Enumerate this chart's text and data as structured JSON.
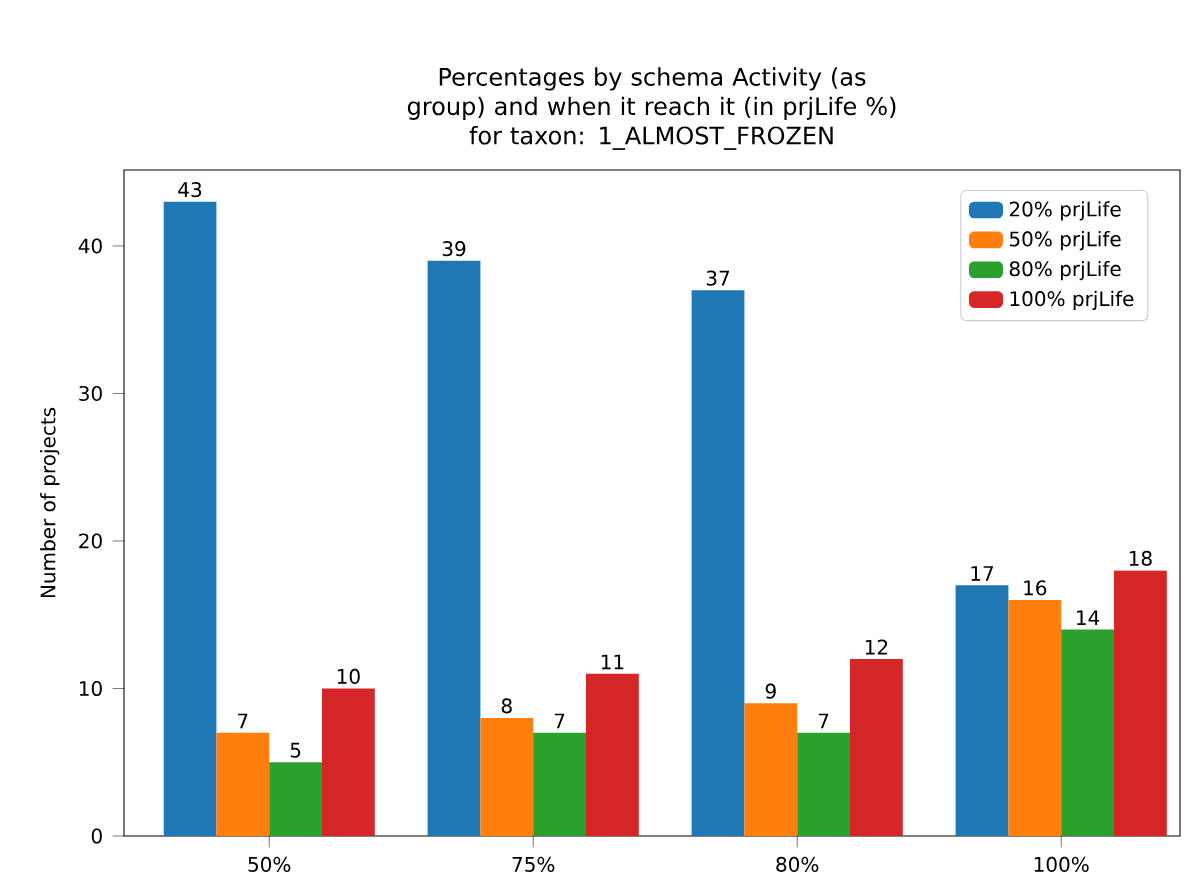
{
  "chart_data": {
    "type": "bar",
    "title": "Percentages by schema Activity (as group) and when it reach it (in prjLife %)",
    "subtitle": "for taxon: 1_ALMOST_FROZEN",
    "ylabel": "Number of projects",
    "categories": [
      "50%",
      "75%",
      "80%",
      "100%"
    ],
    "series": [
      {
        "name": "20% prjLife",
        "color": "#1f77b4",
        "values": [
          43,
          39,
          37,
          17
        ]
      },
      {
        "name": "50% prjLife",
        "color": "#ff7f0e",
        "values": [
          7,
          8,
          9,
          16
        ]
      },
      {
        "name": "80% prjLife",
        "color": "#2ca02c",
        "values": [
          5,
          7,
          7,
          14
        ]
      },
      {
        "name": "100% prjLife",
        "color": "#d62728",
        "values": [
          10,
          11,
          12,
          18
        ]
      }
    ],
    "ylim": [
      0,
      45.15
    ],
    "yticks": [
      0,
      10,
      20,
      30,
      40
    ],
    "legend": "top right",
    "data_labels": true,
    "grid": false
  }
}
